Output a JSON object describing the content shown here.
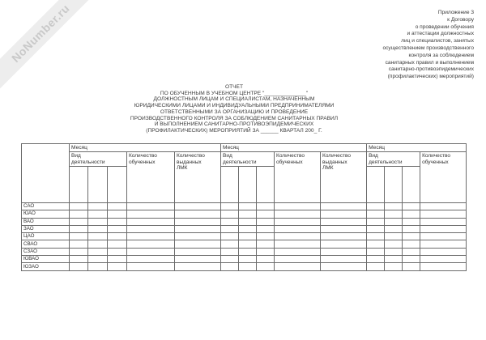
{
  "watermark": {
    "text": "NoNumber.ru"
  },
  "appendix_note": {
    "lines": [
      "Приложение 3",
      "к Договору",
      "о проведении обучения",
      "и аттестации должностных",
      "лиц и специалистов, занятых",
      "осуществлением производственного",
      "контроля за соблюдением",
      "санитарных правил и выполнением",
      "санитарно-противоэпидемических",
      "(профилактических) мероприятий)"
    ]
  },
  "title": {
    "lines": [
      "ОТЧЕТ",
      "ПО ОБУЧЕННЫМ В УЧЕБНОМ ЦЕНТРЕ \"______________\"",
      "ДОЛЖНОСТНЫМ ЛИЦАМ И СПЕЦИАЛИСТАМ, НАЗНАЧЕННЫМ",
      "ЮРИДИЧЕСКИМИ ЛИЦАМИ И ИНДИВИДУАЛЬНЫМИ ПРЕДПРИНИМАТЕЛЯМИ",
      "ОТВЕТСТВЕННЫМИ ЗА ОРГАНИЗАЦИЮ И ПРОВЕДЕНИЕ",
      "ПРОИЗВОДСТВЕННОГО КОНТРОЛЯ ЗА СОБЛЮДЕНИЕМ САНИТАРНЫХ ПРАВИЛ",
      "И ВЫПОЛНЕНИЕМ САНИТАРНО-ПРОТИВОЭПИДЕМИЧЕСКИХ",
      "(ПРОФИЛАКТИЧЕСКИХ) МЕРОПРИЯТИЙ ЗА ______ КВАРТАЛ 200_ Г."
    ]
  },
  "report_table": {
    "month_label": "Месяц",
    "columns": {
      "activity": "Вид\nдеятельности",
      "trained": "Количество\nобученных",
      "lmk": "Количество\nвыданных\nЛМК"
    },
    "districts": [
      "САО",
      "ЮАО",
      "ВАО",
      "ЗАО",
      "ЦАО",
      "СВАО",
      "СЗАО",
      "ЮВАО",
      "ЮЗАО"
    ]
  }
}
